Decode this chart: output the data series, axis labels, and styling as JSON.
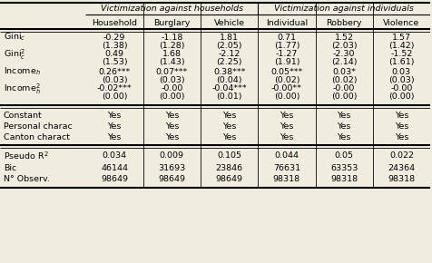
{
  "col_headers": [
    "Household",
    "Burglary",
    "Vehicle",
    "Individual",
    "Robbery",
    "Violence"
  ],
  "group_headers": [
    {
      "label": "Victimization against households",
      "span": [
        0,
        2
      ]
    },
    {
      "label": "Victimization against individuals",
      "span": [
        3,
        5
      ]
    }
  ],
  "rows": [
    {
      "label": "Gini$_c$",
      "values": [
        "-0.29",
        "-1.18",
        "1.81",
        "0.71",
        "1.52",
        "1.57"
      ],
      "se": [
        "(1.38)",
        "(1.28)",
        "(2.05)",
        "(1.77)",
        "(2.03)",
        "(1.42)"
      ]
    },
    {
      "label": "Gini$_c^2$",
      "values": [
        "0.49",
        "1.68",
        "-2.12",
        "-1.27",
        "-2.30",
        "-1.52"
      ],
      "se": [
        "(1.53)",
        "(1.43)",
        "(2.25)",
        "(1.91)",
        "(2.14)",
        "(1.61)"
      ]
    },
    {
      "label": "Income$_h$",
      "values": [
        "0.26***",
        "0.07***",
        "0.38***",
        "0.05***",
        "0.03*",
        "0.03"
      ],
      "se": [
        "(0.03)",
        "(0.03)",
        "(0.04)",
        "(0.02)",
        "(0.02)",
        "(0.03)"
      ]
    },
    {
      "label": "Income$_h^2$",
      "values": [
        "-0.02***",
        "-0.00",
        "-0.04***",
        "-0.00**",
        "-0.00",
        "-0.00"
      ],
      "se": [
        "(0.00)",
        "(0.00)",
        "(0.01)",
        "(0.00)",
        "(0.00)",
        "(0.00)"
      ]
    }
  ],
  "yes_rows": [
    {
      "label": "Constant",
      "values": [
        "Yes",
        "Yes",
        "Yes",
        "Yes",
        "Yes",
        "Yes"
      ]
    },
    {
      "label": "Personal charac",
      "values": [
        "Yes",
        "Yes",
        "Yes",
        "Yes",
        "Yes",
        "Yes"
      ]
    },
    {
      "label": "Canton charact",
      "values": [
        "Yes",
        "Yes",
        "Yes",
        "Yes",
        "Yes",
        "Yes"
      ]
    }
  ],
  "stat_rows": [
    {
      "label": "Pseudo R$^2$",
      "values": [
        "0.034",
        "0.009",
        "0.105",
        "0.044",
        "0.05",
        "0.022"
      ]
    },
    {
      "label": "Bic",
      "values": [
        "46144",
        "31693",
        "23846",
        "76631",
        "63353",
        "24364"
      ]
    },
    {
      "label": "N° Observ.",
      "values": [
        "98649",
        "98649",
        "98649",
        "98318",
        "98318",
        "98318"
      ]
    }
  ],
  "bg_color": "#f0ede0",
  "font_size": 6.8
}
